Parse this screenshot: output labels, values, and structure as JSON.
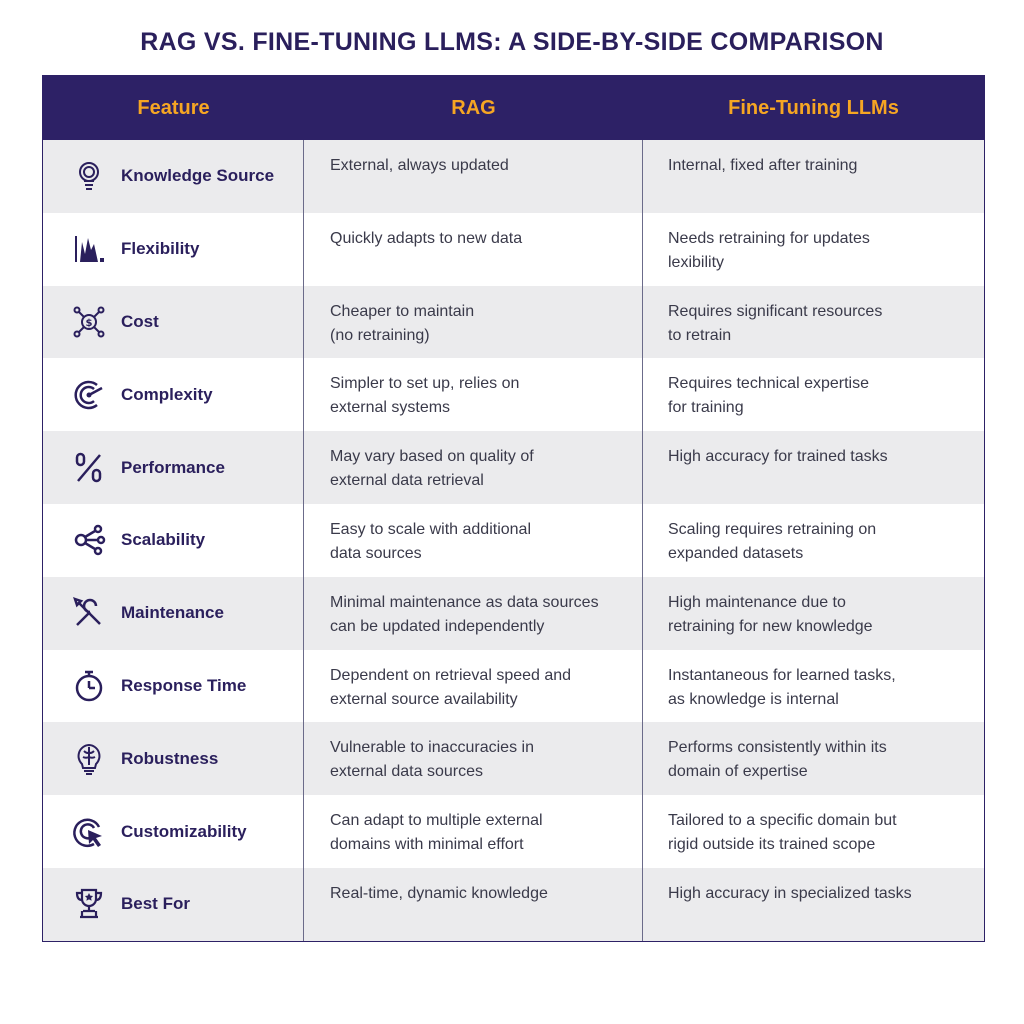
{
  "title": "RAG VS. FINE-TUNING LLMS: A SIDE-BY-SIDE COMPARISON",
  "colors": {
    "header_bg": "#2d2166",
    "header_text": "#f6a623",
    "title": "#2a1f5c",
    "alt_row": "#ebebed"
  },
  "headers": [
    "Feature",
    "RAG",
    "Fine-Tuning LLMs"
  ],
  "rows": [
    {
      "icon": "lightbulb-icon",
      "feature": "Knowledge Source",
      "rag": [
        "External, always updated",
        ""
      ],
      "ft": [
        "Internal, fixed after training",
        ""
      ]
    },
    {
      "icon": "bar-chart-icon",
      "feature": "Flexibility",
      "rag": [
        "Quickly adapts to new data",
        ""
      ],
      "ft": [
        "Needs retraining for updates",
        "lexibility"
      ]
    },
    {
      "icon": "dollar-network-icon",
      "feature": "Cost",
      "rag": [
        "Cheaper to maintain",
        "(no retraining)"
      ],
      "ft": [
        "Requires significant resources",
        "to retrain"
      ]
    },
    {
      "icon": "target-icon",
      "feature": "Complexity",
      "rag": [
        "Simpler to set up, relies on",
        "external systems"
      ],
      "ft": [
        "Requires technical expertise",
        "for training"
      ]
    },
    {
      "icon": "percent-icon",
      "feature": "Performance",
      "rag": [
        "May vary based on quality of",
        "external data retrieval"
      ],
      "ft": [
        "High accuracy for trained tasks",
        ""
      ]
    },
    {
      "icon": "share-nodes-icon",
      "feature": "Scalability",
      "rag": [
        "Easy to scale with additional",
        "data sources"
      ],
      "ft": [
        "Scaling requires retraining on",
        "expanded datasets"
      ]
    },
    {
      "icon": "tools-icon",
      "feature": "Maintenance",
      "rag": [
        "Minimal maintenance as data sources",
        "can be updated independently"
      ],
      "ft": [
        "High maintenance due to",
        "retraining for new knowledge"
      ]
    },
    {
      "icon": "stopwatch-icon",
      "feature": "Response Time",
      "rag": [
        "Dependent on retrieval speed and",
        "external source availability"
      ],
      "ft": [
        "Instantaneous for learned tasks,",
        "as knowledge is internal"
      ]
    },
    {
      "icon": "brain-bulb-icon",
      "feature": "Robustness",
      "rag": [
        "Vulnerable to inaccuracies in",
        "external data sources"
      ],
      "ft": [
        "Performs consistently within its",
        "domain of expertise"
      ]
    },
    {
      "icon": "target-cursor-icon",
      "feature": "Customizability",
      "rag": [
        "Can adapt to multiple external",
        "domains with minimal effort"
      ],
      "ft": [
        "Tailored to a specific domain but",
        "rigid outside its trained scope"
      ]
    },
    {
      "icon": "trophy-icon",
      "feature": "Best For",
      "rag": [
        "Real-time, dynamic knowledge",
        ""
      ],
      "ft": [
        "High accuracy in specialized tasks",
        ""
      ]
    }
  ]
}
